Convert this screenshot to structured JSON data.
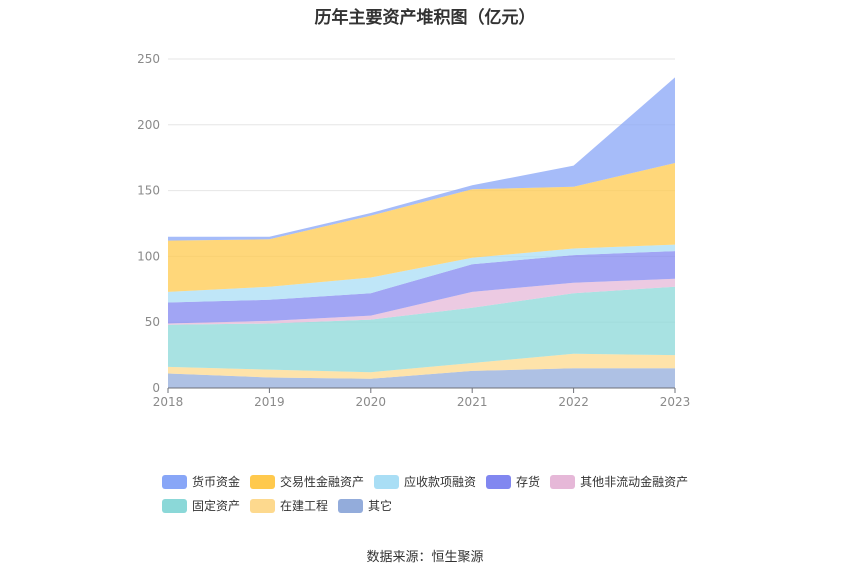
{
  "title": "历年主要资产堆积图（亿元）",
  "source": "数据来源：恒生聚源",
  "chart_data": {
    "type": "area",
    "stacked": true,
    "title": "历年主要资产堆积图（亿元）",
    "x": [
      "2018",
      "2019",
      "2020",
      "2021",
      "2022",
      "2023"
    ],
    "ylim": [
      0,
      250
    ],
    "yticks": [
      "0",
      "50",
      "100",
      "150",
      "200",
      "250"
    ],
    "grid": true,
    "legend_position": "bottom",
    "series": [
      {
        "name": "其它",
        "color": "#93acdb",
        "values": [
          11,
          8,
          7,
          13,
          15,
          15
        ]
      },
      {
        "name": "在建工程",
        "color": "#fdd98e",
        "values": [
          5,
          6,
          5,
          6,
          11,
          10
        ]
      },
      {
        "name": "固定资产",
        "color": "#8bd8d8",
        "values": [
          32,
          35,
          40,
          42,
          46,
          52
        ]
      },
      {
        "name": "其他非流动金融资产",
        "color": "#e6b8d8",
        "values": [
          1,
          2,
          3,
          12,
          8,
          6
        ]
      },
      {
        "name": "存货",
        "color": "#8187f0",
        "values": [
          16,
          16,
          17,
          21,
          21,
          21
        ]
      },
      {
        "name": "应收款项融资",
        "color": "#a9def5",
        "values": [
          8,
          10,
          12,
          5,
          5,
          5
        ]
      },
      {
        "name": "交易性金融资产",
        "color": "#ffc94d",
        "values": [
          39,
          36,
          47,
          52,
          47,
          62
        ]
      },
      {
        "name": "货币资金",
        "color": "#88a6f7",
        "values": [
          3,
          2,
          2,
          3,
          16,
          65
        ]
      }
    ]
  },
  "legend": {
    "rows": [
      [
        {
          "label": "货币资金",
          "color": "#88a6f7"
        },
        {
          "label": "交易性金融资产",
          "color": "#ffc94d"
        },
        {
          "label": "应收款项融资",
          "color": "#a9def5"
        },
        {
          "label": "存货",
          "color": "#8187f0"
        },
        {
          "label": "其他非流动金融资产",
          "color": "#e6b8d8"
        }
      ],
      [
        {
          "label": "固定资产",
          "color": "#8bd8d8"
        },
        {
          "label": "在建工程",
          "color": "#fdd98e"
        },
        {
          "label": "其它",
          "color": "#93acdb"
        }
      ]
    ]
  }
}
